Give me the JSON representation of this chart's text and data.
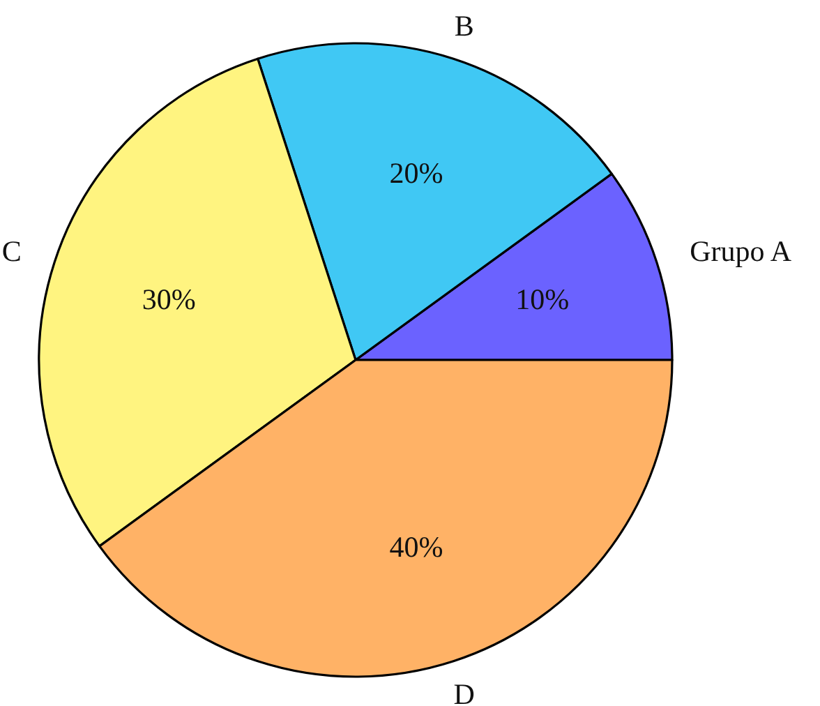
{
  "chart_data": {
    "type": "pie",
    "categories": [
      "Grupo A",
      "B",
      "C",
      "D"
    ],
    "values": [
      10,
      20,
      30,
      40
    ],
    "value_labels": [
      "10%",
      "20%",
      "30%",
      "40%"
    ],
    "colors": [
      "#6b62ff",
      "#40c8f4",
      "#fff480",
      "#ffb266"
    ],
    "legend": false
  }
}
